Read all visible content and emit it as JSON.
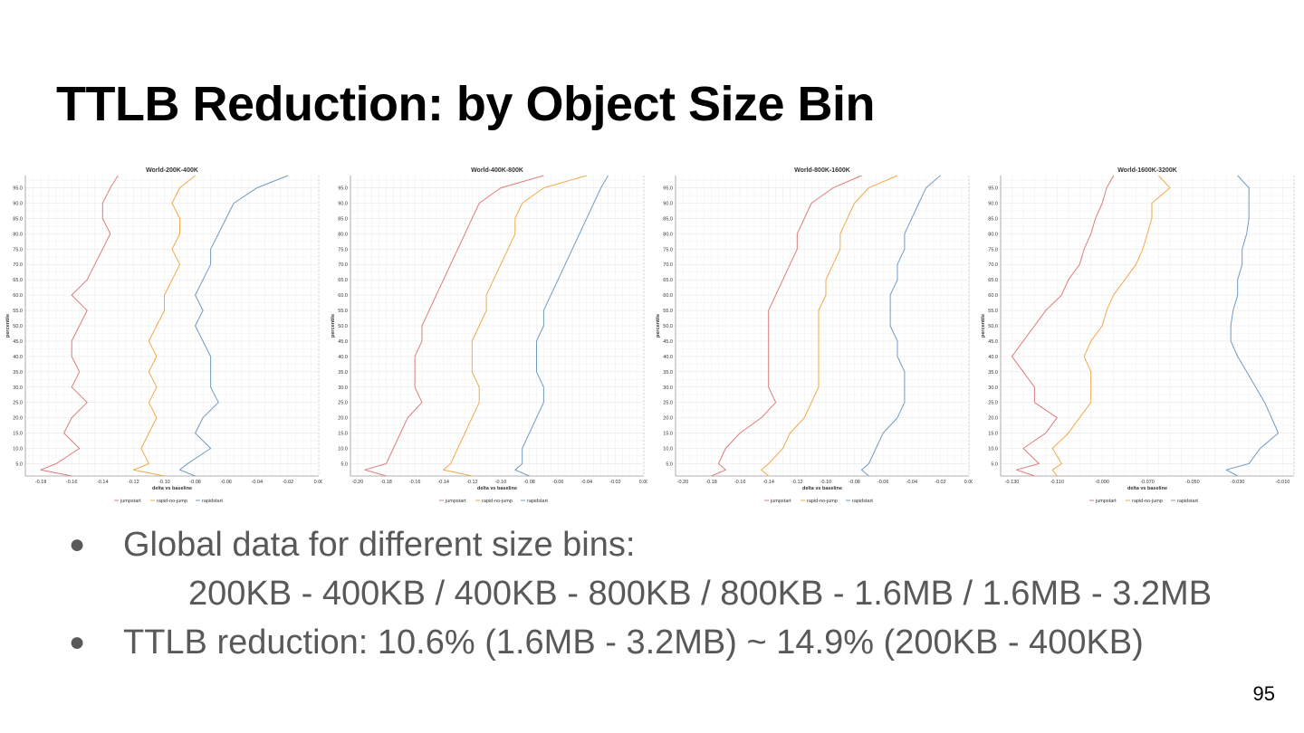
{
  "slide": {
    "title": "TTLB Reduction: by Object Size Bin",
    "page_number": "95",
    "bullets": [
      {
        "text": "Global data for different size bins:",
        "sub": "200KB - 400KB / 400KB - 800KB / 800KB - 1.6MB / 1.6MB - 3.2MB"
      },
      {
        "text": "TTLB reduction: 10.6% (1.6MB - 3.2MB) ~ 14.9% (200KB - 400KB)"
      }
    ]
  },
  "colors": {
    "jumpstart": "#e07b7b",
    "rapid-no-jump": "#f2a94a",
    "rapidstart": "#6f9bc3"
  },
  "chart_data": [
    {
      "type": "line",
      "title": "World-200K-400K",
      "xlabel": "delta vs baseline",
      "ylabel": "percentile",
      "xticks": [
        -0.18,
        -0.16,
        -0.14,
        -0.12,
        -0.1,
        -0.08,
        -0.06,
        -0.04,
        -0.02,
        0.0
      ],
      "tick_decimals": 2,
      "xlim": [
        -0.19,
        0.0
      ],
      "yticks": [
        5,
        10,
        15,
        20,
        25,
        30,
        35,
        40,
        45,
        50,
        55,
        60,
        65,
        70,
        75,
        80,
        85,
        90,
        95
      ],
      "ylim": [
        1,
        99
      ],
      "grid": true,
      "legend": "bottom",
      "series": [
        {
          "name": "jumpstart",
          "y": [
            1,
            3,
            5,
            10,
            15,
            20,
            25,
            30,
            35,
            40,
            45,
            50,
            55,
            60,
            65,
            70,
            75,
            80,
            85,
            90,
            95,
            99
          ],
          "x": [
            -0.16,
            -0.18,
            -0.17,
            -0.155,
            -0.165,
            -0.16,
            -0.15,
            -0.16,
            -0.155,
            -0.16,
            -0.16,
            -0.155,
            -0.15,
            -0.16,
            -0.15,
            -0.145,
            -0.14,
            -0.135,
            -0.14,
            -0.14,
            -0.135,
            -0.13
          ]
        },
        {
          "name": "rapid-no-jump",
          "y": [
            1,
            3,
            5,
            10,
            15,
            20,
            25,
            30,
            35,
            40,
            45,
            50,
            55,
            60,
            65,
            70,
            75,
            80,
            85,
            90,
            95,
            99
          ],
          "x": [
            -0.1,
            -0.12,
            -0.11,
            -0.115,
            -0.11,
            -0.105,
            -0.11,
            -0.105,
            -0.11,
            -0.105,
            -0.11,
            -0.105,
            -0.1,
            -0.1,
            -0.095,
            -0.09,
            -0.095,
            -0.09,
            -0.09,
            -0.095,
            -0.09,
            -0.08
          ]
        },
        {
          "name": "rapidstart",
          "y": [
            1,
            3,
            5,
            10,
            15,
            20,
            25,
            30,
            35,
            40,
            45,
            50,
            55,
            60,
            65,
            70,
            75,
            80,
            85,
            90,
            95,
            99
          ],
          "x": [
            -0.08,
            -0.09,
            -0.085,
            -0.07,
            -0.08,
            -0.075,
            -0.065,
            -0.07,
            -0.07,
            -0.07,
            -0.075,
            -0.08,
            -0.075,
            -0.08,
            -0.075,
            -0.07,
            -0.07,
            -0.065,
            -0.06,
            -0.055,
            -0.04,
            -0.02
          ]
        }
      ]
    },
    {
      "type": "line",
      "title": "World-400K-800K",
      "xlabel": "delta vs baseline",
      "ylabel": "percentile",
      "xticks": [
        -0.2,
        -0.18,
        -0.16,
        -0.14,
        -0.12,
        -0.1,
        -0.08,
        -0.06,
        -0.04,
        -0.02,
        0.0
      ],
      "tick_decimals": 2,
      "xlim": [
        -0.205,
        0.0
      ],
      "yticks": [
        5,
        10,
        15,
        20,
        25,
        30,
        35,
        40,
        45,
        50,
        55,
        60,
        65,
        70,
        75,
        80,
        85,
        90,
        95
      ],
      "ylim": [
        1,
        99
      ],
      "grid": true,
      "legend": "bottom",
      "series": [
        {
          "name": "jumpstart",
          "y": [
            1,
            3,
            5,
            10,
            15,
            20,
            25,
            30,
            35,
            40,
            45,
            50,
            55,
            60,
            65,
            70,
            75,
            80,
            85,
            90,
            95,
            99
          ],
          "x": [
            -0.18,
            -0.195,
            -0.18,
            -0.175,
            -0.17,
            -0.165,
            -0.155,
            -0.16,
            -0.16,
            -0.16,
            -0.155,
            -0.155,
            -0.15,
            -0.145,
            -0.14,
            -0.135,
            -0.13,
            -0.125,
            -0.12,
            -0.115,
            -0.1,
            -0.07
          ]
        },
        {
          "name": "rapid-no-jump",
          "y": [
            1,
            3,
            5,
            10,
            15,
            20,
            25,
            30,
            35,
            40,
            45,
            50,
            55,
            60,
            65,
            70,
            75,
            80,
            85,
            90,
            95,
            99
          ],
          "x": [
            -0.12,
            -0.14,
            -0.135,
            -0.13,
            -0.125,
            -0.12,
            -0.115,
            -0.115,
            -0.12,
            -0.12,
            -0.12,
            -0.115,
            -0.11,
            -0.11,
            -0.105,
            -0.1,
            -0.095,
            -0.09,
            -0.09,
            -0.085,
            -0.07,
            -0.04
          ]
        },
        {
          "name": "rapidstart",
          "y": [
            1,
            3,
            5,
            10,
            15,
            20,
            25,
            30,
            35,
            40,
            45,
            50,
            55,
            60,
            65,
            70,
            75,
            80,
            85,
            90,
            95,
            99
          ],
          "x": [
            -0.08,
            -0.09,
            -0.085,
            -0.085,
            -0.08,
            -0.075,
            -0.07,
            -0.07,
            -0.075,
            -0.075,
            -0.075,
            -0.07,
            -0.07,
            -0.065,
            -0.06,
            -0.055,
            -0.05,
            -0.045,
            -0.04,
            -0.035,
            -0.03,
            -0.025
          ]
        }
      ]
    },
    {
      "type": "line",
      "title": "World-800K-1600K",
      "xlabel": "delta vs baseline",
      "ylabel": "percentile",
      "xticks": [
        -0.2,
        -0.18,
        -0.16,
        -0.14,
        -0.12,
        -0.1,
        -0.08,
        -0.06,
        -0.04,
        -0.02,
        0.0
      ],
      "tick_decimals": 2,
      "xlim": [
        -0.205,
        0.0
      ],
      "yticks": [
        5,
        10,
        15,
        20,
        25,
        30,
        35,
        40,
        45,
        50,
        55,
        60,
        65,
        70,
        75,
        80,
        85,
        90,
        95
      ],
      "ylim": [
        1,
        99
      ],
      "grid": true,
      "legend": "bottom",
      "series": [
        {
          "name": "jumpstart",
          "y": [
            1,
            3,
            5,
            10,
            15,
            20,
            25,
            30,
            35,
            40,
            45,
            50,
            55,
            60,
            65,
            70,
            75,
            80,
            85,
            90,
            95,
            99
          ],
          "x": [
            -0.18,
            -0.17,
            -0.175,
            -0.17,
            -0.16,
            -0.145,
            -0.135,
            -0.14,
            -0.14,
            -0.14,
            -0.14,
            -0.14,
            -0.14,
            -0.135,
            -0.13,
            -0.125,
            -0.12,
            -0.12,
            -0.115,
            -0.11,
            -0.095,
            -0.075
          ]
        },
        {
          "name": "rapid-no-jump",
          "y": [
            1,
            3,
            5,
            10,
            15,
            20,
            25,
            30,
            35,
            40,
            45,
            50,
            55,
            60,
            65,
            70,
            75,
            80,
            85,
            90,
            95,
            99
          ],
          "x": [
            -0.14,
            -0.145,
            -0.14,
            -0.13,
            -0.125,
            -0.115,
            -0.11,
            -0.105,
            -0.105,
            -0.105,
            -0.105,
            -0.105,
            -0.105,
            -0.1,
            -0.1,
            -0.095,
            -0.09,
            -0.09,
            -0.085,
            -0.08,
            -0.07,
            -0.05
          ]
        },
        {
          "name": "rapidstart",
          "y": [
            1,
            3,
            5,
            10,
            15,
            20,
            25,
            30,
            35,
            40,
            45,
            50,
            55,
            60,
            65,
            70,
            75,
            80,
            85,
            90,
            95,
            99
          ],
          "x": [
            -0.07,
            -0.075,
            -0.07,
            -0.065,
            -0.06,
            -0.05,
            -0.045,
            -0.045,
            -0.045,
            -0.05,
            -0.05,
            -0.055,
            -0.055,
            -0.055,
            -0.05,
            -0.05,
            -0.045,
            -0.045,
            -0.04,
            -0.035,
            -0.03,
            -0.02
          ]
        }
      ]
    },
    {
      "type": "line",
      "title": "World-1600K-3200K",
      "xlabel": "delta vs baseline",
      "ylabel": "percentile",
      "xticks": [
        -0.13,
        -0.11,
        -0.09,
        -0.07,
        -0.05,
        -0.03,
        -0.01
      ],
      "tick_decimals": 3,
      "xlim": [
        -0.135,
        -0.005
      ],
      "yticks": [
        5,
        10,
        15,
        20,
        25,
        30,
        35,
        40,
        45,
        50,
        55,
        60,
        65,
        70,
        75,
        80,
        85,
        90,
        95
      ],
      "ylim": [
        1,
        99
      ],
      "grid": true,
      "legend": "bottom",
      "series": [
        {
          "name": "jumpstart",
          "y": [
            1,
            3,
            5,
            10,
            15,
            20,
            25,
            30,
            35,
            40,
            45,
            50,
            55,
            60,
            65,
            70,
            75,
            80,
            85,
            90,
            95,
            99
          ],
          "x": [
            -0.12,
            -0.128,
            -0.118,
            -0.125,
            -0.115,
            -0.11,
            -0.12,
            -0.12,
            -0.125,
            -0.13,
            -0.125,
            -0.12,
            -0.115,
            -0.108,
            -0.105,
            -0.1,
            -0.098,
            -0.095,
            -0.093,
            -0.09,
            -0.088,
            -0.085
          ]
        },
        {
          "name": "rapid-no-jump",
          "y": [
            1,
            3,
            5,
            10,
            15,
            20,
            25,
            30,
            35,
            40,
            45,
            50,
            55,
            60,
            65,
            70,
            75,
            80,
            85,
            90,
            95,
            99
          ],
          "x": [
            -0.11,
            -0.112,
            -0.108,
            -0.112,
            -0.105,
            -0.1,
            -0.095,
            -0.095,
            -0.095,
            -0.098,
            -0.095,
            -0.09,
            -0.088,
            -0.085,
            -0.08,
            -0.075,
            -0.072,
            -0.07,
            -0.068,
            -0.068,
            -0.06,
            -0.065
          ]
        },
        {
          "name": "rapidstart",
          "y": [
            1,
            3,
            5,
            10,
            15,
            20,
            25,
            30,
            35,
            40,
            45,
            50,
            55,
            60,
            65,
            70,
            75,
            80,
            85,
            90,
            95,
            99
          ],
          "x": [
            -0.03,
            -0.035,
            -0.025,
            -0.02,
            -0.012,
            -0.015,
            -0.018,
            -0.022,
            -0.026,
            -0.03,
            -0.033,
            -0.033,
            -0.032,
            -0.03,
            -0.03,
            -0.028,
            -0.028,
            -0.026,
            -0.025,
            -0.025,
            -0.025,
            -0.03
          ]
        }
      ]
    }
  ]
}
